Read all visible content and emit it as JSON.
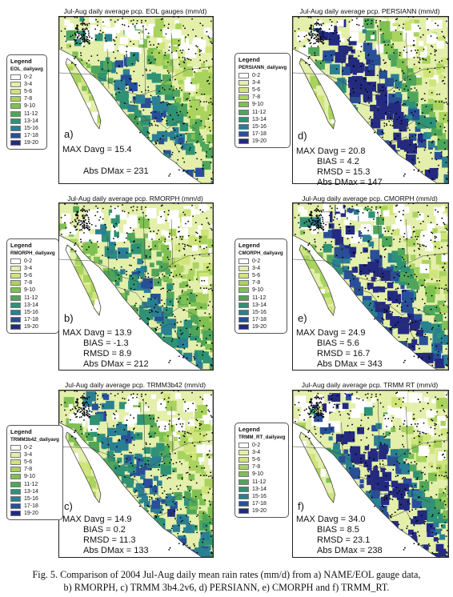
{
  "colors": {
    "0-2": "#ffffff",
    "3-4": "#e3efaa",
    "5-6": "#cfe57a",
    "7-8": "#a9d35e",
    "9-10": "#7fc053",
    "11-12": "#4fa65a",
    "13-14": "#2f9275",
    "15-16": "#2a7f93",
    "17-18": "#284f98",
    "19-20": "#232a80"
  },
  "legend_bins": [
    "0-2",
    "3-4",
    "5-6",
    "7-8",
    "9-10",
    "11-12",
    "13-14",
    "15-16",
    "17-18",
    "19-20"
  ],
  "panels": [
    {
      "id": "a",
      "title": "Jul-Aug daily average pcp. EOL gauges (mm/d)",
      "legend_title": "Legend",
      "legend_sub": "EOL_dailyavg",
      "label": "a)",
      "max_davg": "MAX Davg = 15.4",
      "bias": "",
      "rmsd": "",
      "abs_dmax": "Abs DMax = 231",
      "intensity": 0.45
    },
    {
      "id": "d",
      "title": "Jul-Aug daily average pcp. PERSIANN (mm/d)",
      "legend_title": "Legend",
      "legend_sub": "PERSIANN_dailyavg",
      "label": "d)",
      "max_davg": "MAX Davg = 20.8",
      "bias": "BIAS = 4.2",
      "rmsd": "RMSD = 15.3",
      "abs_dmax": "Abs DMax = 147",
      "intensity": 0.95
    },
    {
      "id": "b",
      "title": "Jul-Aug daily average pcp. RMORPH (mm/d)",
      "legend_title": "Legend",
      "legend_sub": "RMORPH_dailyavg",
      "label": "b)",
      "max_davg": "MAX Davg = 13.9",
      "bias": "BIAS = -1.3",
      "rmsd": "RMSD = 8.9",
      "abs_dmax": "Abs DMax = 212",
      "intensity": 0.35
    },
    {
      "id": "e",
      "title": "Jul-Aug daily average pcp. CMORPH (mm/d)",
      "legend_title": "Legend",
      "legend_sub": "CMORPH_dailyavg",
      "label": "e)",
      "max_davg": "MAX Davg = 24.9",
      "bias": "BIAS = 5.6",
      "rmsd": "RMSD = 16.7",
      "abs_dmax": "Abs DMax = 343",
      "intensity": 0.9
    },
    {
      "id": "c",
      "title": "Jul-Aug daily average pcp. TRMM3b42 (mm/d)",
      "legend_title": "Legend",
      "legend_sub": "TRMM3b42_dailyavg",
      "label": "c)",
      "max_davg": "MAX Davg = 14.9",
      "bias": "BIAS = 0.2",
      "rmsd": "RMSD = 11.3",
      "abs_dmax": "Abs DMax = 133",
      "intensity": 0.5
    },
    {
      "id": "f",
      "title": "Jul-Aug daily average pcp. TRMM RT (mm/d)",
      "legend_title": "Legend",
      "legend_sub": "TRMM_RT_dailyavg",
      "label": "f)",
      "max_davg": "MAX Davg = 34.0",
      "bias": "BIAS = 8.5",
      "rmsd": "RMSD = 23.1",
      "abs_dmax": "Abs DMax = 238",
      "intensity": 1.0
    }
  ],
  "caption": {
    "line1": "Fig. 5. Comparison of 2004 Jul-Aug daily mean rain rates (mm/d) from a) NAME/EOL gauge data,",
    "line2": "b) RMORPH, c) TRMM 3b4.2v6, d) PERSIANN, e) CMORPH and f) TRMM_RT."
  }
}
